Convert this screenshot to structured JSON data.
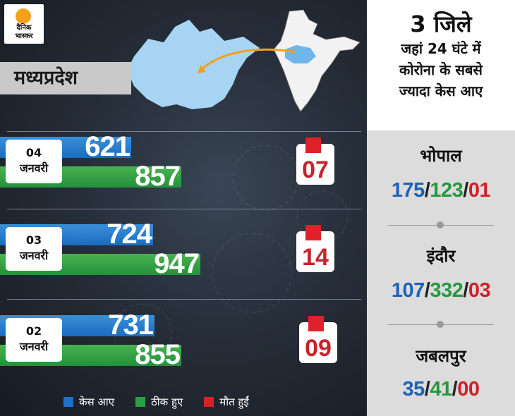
{
  "logo": {
    "line1": "दैनिक",
    "line2": "भास्कर"
  },
  "state_label": "मध्यप्रदेश",
  "panel": {
    "heading": "3 जिले",
    "subheading": [
      "जहां 24 घंटे में",
      "कोरोना के सबसे",
      "ज्यादा केस आए"
    ],
    "cities": [
      {
        "name": "भोपाल",
        "cases": "175",
        "recovered": "123",
        "deaths": "01"
      },
      {
        "name": "इंदौर",
        "cases": "107",
        "recovered": "332",
        "deaths": "03"
      },
      {
        "name": "जबलपुर",
        "cases": "35",
        "recovered": "41",
        "deaths": "00"
      }
    ]
  },
  "legend": [
    {
      "label": "केस आए",
      "color": "#1a73c8"
    },
    {
      "label": "ठीक हुए",
      "color": "#2aa043"
    },
    {
      "label": "मौत हुईं",
      "color": "#d6232b"
    }
  ],
  "chart_data": {
    "type": "bar",
    "categories": [
      {
        "day": "04",
        "month": "जनवरी"
      },
      {
        "day": "03",
        "month": "जनवरी"
      },
      {
        "day": "02",
        "month": "जनवरी"
      }
    ],
    "series": [
      {
        "name": "केस आए",
        "values": [
          621,
          724,
          731
        ],
        "color": "#1a73c8"
      },
      {
        "name": "ठीक हुए",
        "values": [
          857,
          947,
          855
        ],
        "color": "#2aa043"
      },
      {
        "name": "मौत हुईं",
        "values": [
          "07",
          "14",
          "09"
        ],
        "color": "#d6232b"
      }
    ]
  }
}
